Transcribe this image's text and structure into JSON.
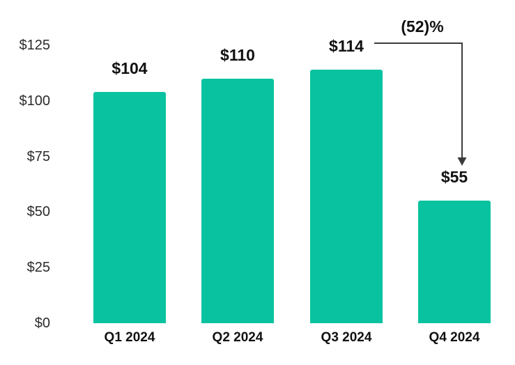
{
  "chart_data": {
    "type": "bar",
    "title": "",
    "categories": [
      "Q1 2024",
      "Q2 2024",
      "Q3 2024",
      "Q4 2024"
    ],
    "values": [
      104,
      110,
      114,
      55
    ],
    "value_labels": [
      "$104",
      "$110",
      "$114",
      "$55"
    ],
    "ytick_values": [
      125,
      100,
      75,
      50,
      25,
      0
    ],
    "ytick_labels": [
      "$125",
      "$100",
      "$75",
      "$50",
      "$25",
      "$0"
    ],
    "ylim": [
      0,
      125
    ],
    "grid": false,
    "legend": "none",
    "annotation": {
      "text": "(52)%",
      "from_category": "Q3 2024",
      "to_category": "Q4 2024",
      "meaning": "52 percent decline from Q3 2024 to Q4 2024"
    },
    "colors": {
      "bar": "#09c3a0",
      "value_text": "#111111",
      "axis_text": "#2b2b2b",
      "arrow": "#3c3c3c",
      "background": "#ffffff"
    }
  }
}
